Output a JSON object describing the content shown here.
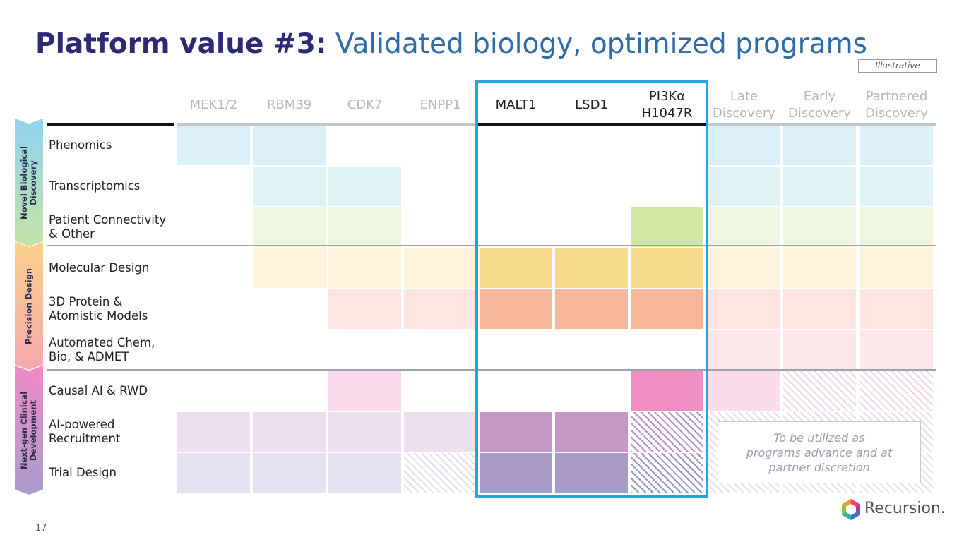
{
  "title": {
    "bold": "Platform value #3:",
    "regular": "Validated biology, optimized programs"
  },
  "badge": "Illustrative",
  "columns": [
    {
      "id": "mek",
      "label": "MEK1/2",
      "style": "faded"
    },
    {
      "id": "rbm",
      "label": "RBM39",
      "style": "faded"
    },
    {
      "id": "cdk",
      "label": "CDK7",
      "style": "faded"
    },
    {
      "id": "enpp",
      "label": "ENPP1",
      "style": "faded"
    },
    {
      "id": "malt",
      "label": "MALT1",
      "style": "dark"
    },
    {
      "id": "lsd",
      "label": "LSD1",
      "style": "dark"
    },
    {
      "id": "pi3k",
      "label": "PI3Kα\nH1047R",
      "style": "dark"
    },
    {
      "id": "late",
      "label": "Late\nDiscovery",
      "style": "faded"
    },
    {
      "id": "early",
      "label": "Early\nDiscovery",
      "style": "faded"
    },
    {
      "id": "partnered",
      "label": "Partnered\nDiscovery",
      "style": "faded"
    }
  ],
  "sections": [
    {
      "label": "Novel Biological\nDiscovery",
      "top": "#8fd3ef",
      "bottom": "#c5e3a5"
    },
    {
      "label": "Precision Design",
      "top": "#fbd08a",
      "bottom": "#f4a8ac"
    },
    {
      "label": "Next-gen Clinical\nDevelopment",
      "top": "#f08bc4",
      "bottom": "#a99ccc"
    }
  ],
  "rows": [
    {
      "label": "Phenomics",
      "cells": [
        "#dcf0fa",
        "#dcf0fa",
        "",
        "",
        "",
        "",
        "",
        "#dcf0fa",
        "#dcf0fa",
        "#dcf0fa"
      ]
    },
    {
      "label": "Transcriptomics",
      "cells": [
        "",
        "#e0f3f4",
        "#e0f3f4",
        "",
        "",
        "",
        "",
        "#e0f3f4",
        "#e0f3f4",
        "#e0f3f4"
      ]
    },
    {
      "label": "Patient Connectivity\n& Other",
      "cells": [
        "",
        "#eef6e0",
        "#eef6e0",
        "",
        "",
        "",
        "#d2e7a2",
        "#eef6e0",
        "#eef6e0",
        "#eef6e0"
      ]
    },
    {
      "label": "Molecular Design",
      "cells": [
        "",
        "#fdf3db",
        "#fdf3db",
        "#fdf3db",
        "#f8db8c",
        "#f8db8c",
        "#f8db8c",
        "#fdf3db",
        "#fdf3db",
        "#fdf3db"
      ]
    },
    {
      "label": "3D Protein &\nAtomistic Models",
      "cells": [
        "",
        "",
        "#fde6e0",
        "#fde6e0",
        "#f6b698",
        "#f6b698",
        "#f6b698",
        "#fde6e0",
        "#fde6e0",
        "#fde6e0"
      ]
    },
    {
      "label": "Automated Chem,\nBio, & ADMET",
      "cells": [
        "",
        "",
        "",
        "",
        "",
        "",
        "",
        "#fde7ea",
        "#fde7ea",
        "#fde7ea"
      ]
    },
    {
      "label": "Causal AI & RWD",
      "cells": [
        "",
        "",
        "#fbdcec",
        "",
        "",
        "",
        "#f08fc3",
        "#fbdcec",
        "hatch:#f5d6e4",
        "hatch:#f5d6e4"
      ]
    },
    {
      "label": "AI-powered\nRecruitment",
      "cells": [
        "#ede0ee",
        "#ede0ee",
        "#ede0ee",
        "#ede0ee",
        "#c597c6",
        "#c597c6",
        "hatch:#b58fc9",
        "hatch:#e8dcee",
        "hatch:#e8dcee",
        "hatch:#e8dcee"
      ]
    },
    {
      "label": "Trial Design",
      "cells": [
        "#e6e2f1",
        "#e6e2f1",
        "#e6e2f1",
        "hatch:#e2e0ea",
        "#a99ac9",
        "#a99ac9",
        "hatch:#9c92c8",
        "hatch:#e6e2f1",
        "hatch:#e6e2f1",
        "hatch:#e6e2f1"
      ]
    }
  ],
  "note": "To be utilized as\nprograms advance and at\npartner discretion",
  "page_number": "17",
  "logo_text": "Recursion."
}
